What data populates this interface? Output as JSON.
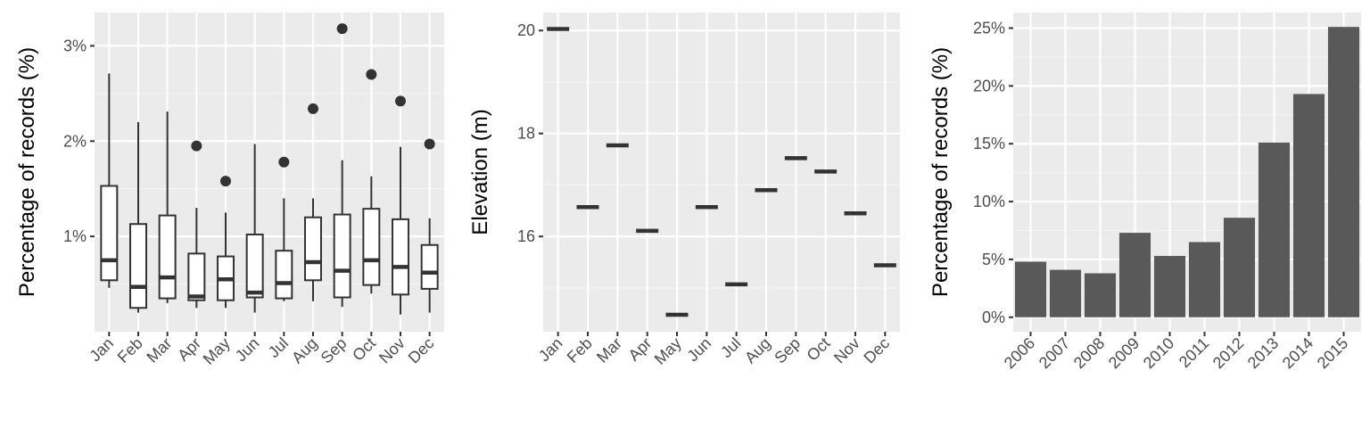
{
  "theme": {
    "panel_bg": "#ebebeb",
    "grid_major": "#ffffff",
    "grid_minor": "#f5f5f5",
    "mark_color": "#333333",
    "bar_fill": "#595959",
    "box_fill": "#ffffff",
    "tick_text": "#4d4d4d"
  },
  "chart_data": [
    {
      "type": "boxplot",
      "ylabel": "Percentage of records (%)",
      "xlabel": "",
      "categories": [
        "Jan",
        "Feb",
        "Mar",
        "Apr",
        "May",
        "Jun",
        "Jul",
        "Aug",
        "Sep",
        "Oct",
        "Nov",
        "Dec"
      ],
      "yticks": [
        1,
        2,
        3
      ],
      "ytick_labels": [
        "1%",
        "2%",
        "3%"
      ],
      "ylim": [
        0.0,
        3.35
      ],
      "boxes": [
        {
          "min": 0.46,
          "q1": 0.54,
          "median": 0.75,
          "q3": 1.53,
          "max": 2.71,
          "outliers": []
        },
        {
          "min": 0.2,
          "q1": 0.25,
          "median": 0.47,
          "q3": 1.13,
          "max": 2.2,
          "outliers": []
        },
        {
          "min": 0.3,
          "q1": 0.35,
          "median": 0.57,
          "q3": 1.22,
          "max": 2.31,
          "outliers": []
        },
        {
          "min": 0.25,
          "q1": 0.33,
          "median": 0.37,
          "q3": 0.82,
          "max": 1.3,
          "outliers": [
            1.95
          ]
        },
        {
          "min": 0.25,
          "q1": 0.33,
          "median": 0.55,
          "q3": 0.79,
          "max": 1.25,
          "outliers": [
            1.58
          ]
        },
        {
          "min": 0.2,
          "q1": 0.36,
          "median": 0.41,
          "q3": 1.02,
          "max": 1.97,
          "outliers": []
        },
        {
          "min": 0.32,
          "q1": 0.35,
          "median": 0.51,
          "q3": 0.85,
          "max": 1.4,
          "outliers": [
            1.78
          ]
        },
        {
          "min": 0.32,
          "q1": 0.54,
          "median": 0.73,
          "q3": 1.2,
          "max": 1.4,
          "outliers": [
            2.34
          ]
        },
        {
          "min": 0.26,
          "q1": 0.36,
          "median": 0.64,
          "q3": 1.23,
          "max": 1.8,
          "outliers": [
            3.18
          ]
        },
        {
          "min": 0.4,
          "q1": 0.49,
          "median": 0.75,
          "q3": 1.29,
          "max": 1.63,
          "outliers": [
            2.7
          ]
        },
        {
          "min": 0.18,
          "q1": 0.39,
          "median": 0.68,
          "q3": 1.18,
          "max": 1.94,
          "outliers": [
            2.42
          ]
        },
        {
          "min": 0.2,
          "q1": 0.45,
          "median": 0.62,
          "q3": 0.91,
          "max": 1.19,
          "outliers": [
            1.97
          ]
        }
      ]
    },
    {
      "type": "crossbar",
      "ylabel": "Elevation (m)",
      "xlabel": "",
      "categories": [
        "Jan",
        "Feb",
        "Mar",
        "Apr",
        "May",
        "Jun",
        "Jul",
        "Aug",
        "Sep",
        "Oct",
        "Nov",
        "Dec"
      ],
      "values": [
        20.03,
        16.57,
        17.77,
        16.11,
        14.48,
        16.57,
        15.07,
        16.9,
        17.52,
        17.26,
        16.45,
        15.44
      ],
      "yticks": [
        16,
        18,
        20
      ],
      "ytick_labels": [
        "16",
        "18",
        "20"
      ],
      "ylim": [
        14.15,
        20.35
      ]
    },
    {
      "type": "bar",
      "ylabel": "Percentage of records (%)",
      "xlabel": "",
      "categories": [
        "2006",
        "2007",
        "2008",
        "2009",
        "2010",
        "2011",
        "2012",
        "2013",
        "2014",
        "2015"
      ],
      "values": [
        4.8,
        4.1,
        3.8,
        7.3,
        5.3,
        6.5,
        8.6,
        15.1,
        19.3,
        25.1
      ],
      "yticks": [
        0,
        5,
        10,
        15,
        20,
        25
      ],
      "ytick_labels": [
        "0%",
        "5%",
        "10%",
        "15%",
        "20%",
        "25%"
      ],
      "ylim": [
        -1.25,
        26.35
      ]
    }
  ]
}
